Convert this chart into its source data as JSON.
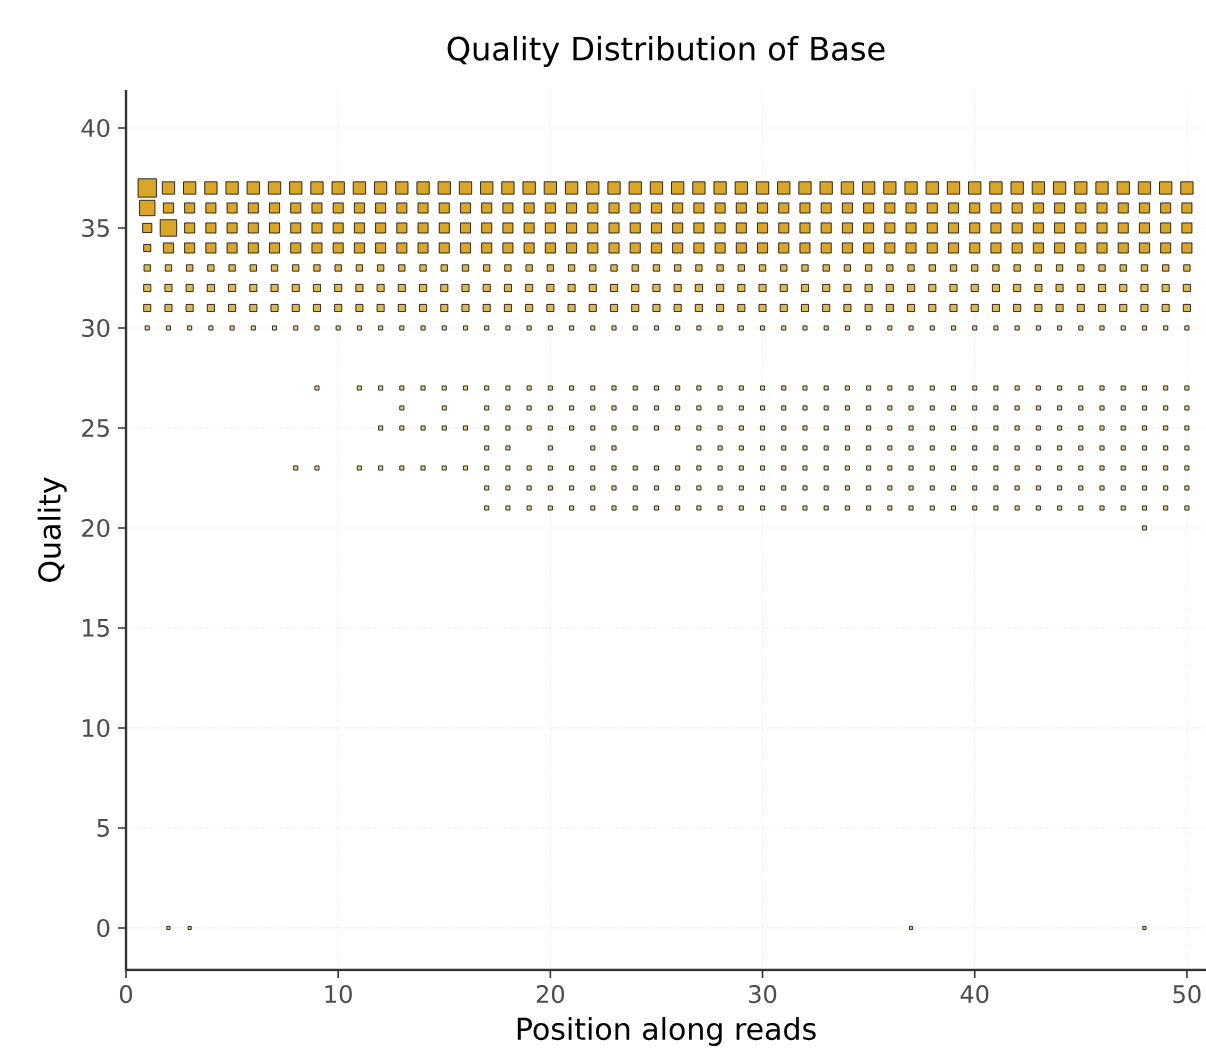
{
  "chart_data": {
    "type": "bubble",
    "title": "Quality Distribution of Base",
    "xlabel": "Position along reads",
    "ylabel": "Quality",
    "xlim": [
      0,
      50.9
    ],
    "ylim": [
      -2.1,
      41.9
    ],
    "xticks": [
      0,
      10,
      20,
      30,
      40,
      50
    ],
    "yticks": [
      0,
      5,
      10,
      15,
      20,
      25,
      30,
      35,
      40
    ],
    "grid": true,
    "marker": "square",
    "relative": false,
    "series": [
      {
        "color": "#d9a62a",
        "x": [
          1,
          2,
          3,
          4,
          5,
          6,
          7,
          8,
          9,
          10,
          11,
          12,
          13,
          14,
          15,
          16,
          17,
          18,
          19,
          20,
          21,
          22,
          23,
          24,
          25,
          26,
          27,
          28,
          29,
          30,
          31,
          32,
          33,
          34,
          35,
          36,
          37,
          38,
          39,
          40,
          41,
          42,
          43,
          44,
          45,
          46,
          47,
          48,
          49,
          50
        ],
        "values": [
          37,
          37,
          37,
          37,
          37,
          37,
          37,
          37,
          37,
          37,
          37,
          37,
          37,
          37,
          37,
          37,
          37,
          37,
          37,
          37,
          37,
          37,
          37,
          37,
          37,
          37,
          37,
          37,
          37,
          37,
          37,
          37,
          37,
          37,
          37,
          37,
          37,
          37,
          37,
          37,
          37,
          37,
          37,
          37,
          37,
          37,
          37,
          37,
          37,
          37
        ],
        "sizes": [
          1,
          0.45,
          0.45,
          0.45,
          0.45,
          0.45,
          0.45,
          0.45,
          0.45,
          0.45,
          0.45,
          0.45,
          0.45,
          0.45,
          0.45,
          0.45,
          0.45,
          0.45,
          0.45,
          0.45,
          0.45,
          0.45,
          0.45,
          0.45,
          0.45,
          0.45,
          0.45,
          0.45,
          0.45,
          0.45,
          0.45,
          0.45,
          0.45,
          0.45,
          0.45,
          0.45,
          0.45,
          0.45,
          0.45,
          0.45,
          0.45,
          0.45,
          0.45,
          0.45,
          0.45,
          0.45,
          0.45,
          0.45,
          0.45,
          0.45
        ]
      },
      {
        "color": "#d9a62a",
        "x": [
          1,
          2,
          3,
          4,
          5,
          6,
          7,
          8,
          9,
          10,
          11,
          12,
          13,
          14,
          15,
          16,
          17,
          18,
          19,
          20,
          21,
          22,
          23,
          24,
          25,
          26,
          27,
          28,
          29,
          30,
          31,
          32,
          33,
          34,
          35,
          36,
          37,
          38,
          39,
          40,
          41,
          42,
          43,
          44,
          45,
          46,
          47,
          48,
          49,
          50
        ],
        "values": [
          36,
          36,
          36,
          36,
          36,
          36,
          36,
          36,
          36,
          36,
          36,
          36,
          36,
          36,
          36,
          36,
          36,
          36,
          36,
          36,
          36,
          36,
          36,
          36,
          36,
          36,
          36,
          36,
          36,
          36,
          36,
          36,
          36,
          36,
          36,
          36,
          36,
          36,
          36,
          36,
          36,
          36,
          36,
          36,
          36,
          36,
          36,
          36,
          36,
          36
        ],
        "sizes": [
          0.7,
          0.3,
          0.3,
          0.3,
          0.3,
          0.3,
          0.3,
          0.3,
          0.3,
          0.3,
          0.3,
          0.3,
          0.3,
          0.3,
          0.3,
          0.3,
          0.3,
          0.3,
          0.3,
          0.3,
          0.3,
          0.3,
          0.3,
          0.3,
          0.3,
          0.3,
          0.3,
          0.3,
          0.3,
          0.3,
          0.3,
          0.3,
          0.3,
          0.3,
          0.3,
          0.3,
          0.3,
          0.3,
          0.3,
          0.3,
          0.3,
          0.3,
          0.3,
          0.3,
          0.3,
          0.3,
          0.3,
          0.3,
          0.3,
          0.3
        ]
      },
      {
        "color": "#d9a62a",
        "x": [
          1,
          2,
          3,
          4,
          5,
          6,
          7,
          8,
          9,
          10,
          11,
          12,
          13,
          14,
          15,
          16,
          17,
          18,
          19,
          20,
          21,
          22,
          23,
          24,
          25,
          26,
          27,
          28,
          29,
          30,
          31,
          32,
          33,
          34,
          35,
          36,
          37,
          38,
          39,
          40,
          41,
          42,
          43,
          44,
          45,
          46,
          47,
          48,
          49,
          50
        ],
        "values": [
          35,
          35,
          35,
          35,
          35,
          35,
          35,
          35,
          35,
          35,
          35,
          35,
          35,
          35,
          35,
          35,
          35,
          35,
          35,
          35,
          35,
          35,
          35,
          35,
          35,
          35,
          35,
          35,
          35,
          35,
          35,
          35,
          35,
          35,
          35,
          35,
          35,
          35,
          35,
          35,
          35,
          35,
          35,
          35,
          35,
          35,
          35,
          35,
          35,
          35
        ],
        "sizes": [
          0.25,
          0.8,
          0.3,
          0.3,
          0.3,
          0.3,
          0.3,
          0.3,
          0.3,
          0.3,
          0.3,
          0.3,
          0.3,
          0.3,
          0.3,
          0.3,
          0.3,
          0.3,
          0.3,
          0.3,
          0.3,
          0.3,
          0.3,
          0.3,
          0.3,
          0.3,
          0.3,
          0.3,
          0.3,
          0.3,
          0.3,
          0.3,
          0.3,
          0.3,
          0.3,
          0.3,
          0.3,
          0.3,
          0.3,
          0.3,
          0.3,
          0.3,
          0.3,
          0.3,
          0.3,
          0.3,
          0.3,
          0.3,
          0.3,
          0.3
        ]
      },
      {
        "color": "#d9a62a",
        "x": [
          1,
          2,
          3,
          4,
          5,
          6,
          7,
          8,
          9,
          10,
          11,
          12,
          13,
          14,
          15,
          16,
          17,
          18,
          19,
          20,
          21,
          22,
          23,
          24,
          25,
          26,
          27,
          28,
          29,
          30,
          31,
          32,
          33,
          34,
          35,
          36,
          37,
          38,
          39,
          40,
          41,
          42,
          43,
          44,
          45,
          46,
          47,
          48,
          49,
          50
        ],
        "values": [
          34,
          34,
          34,
          34,
          34,
          34,
          34,
          34,
          34,
          34,
          34,
          34,
          34,
          34,
          34,
          34,
          34,
          34,
          34,
          34,
          34,
          34,
          34,
          34,
          34,
          34,
          34,
          34,
          34,
          34,
          34,
          34,
          34,
          34,
          34,
          34,
          34,
          34,
          34,
          34,
          34,
          34,
          34,
          34,
          34,
          34,
          34,
          34,
          34,
          34
        ],
        "sizes": [
          0.15,
          0.3,
          0.3,
          0.3,
          0.3,
          0.3,
          0.3,
          0.3,
          0.3,
          0.3,
          0.3,
          0.3,
          0.3,
          0.3,
          0.3,
          0.3,
          0.3,
          0.3,
          0.3,
          0.3,
          0.3,
          0.3,
          0.3,
          0.3,
          0.3,
          0.3,
          0.3,
          0.3,
          0.3,
          0.3,
          0.3,
          0.3,
          0.3,
          0.3,
          0.3,
          0.3,
          0.3,
          0.3,
          0.3,
          0.3,
          0.3,
          0.3,
          0.3,
          0.3,
          0.3,
          0.3,
          0.3,
          0.3,
          0.3,
          0.3
        ]
      },
      {
        "color": "#e0b850",
        "x": [
          1,
          2,
          3,
          4,
          5,
          6,
          7,
          8,
          9,
          10,
          11,
          12,
          13,
          14,
          15,
          16,
          17,
          18,
          19,
          20,
          21,
          22,
          23,
          24,
          25,
          26,
          27,
          28,
          29,
          30,
          31,
          32,
          33,
          34,
          35,
          36,
          37,
          38,
          39,
          40,
          41,
          42,
          43,
          44,
          45,
          46,
          47,
          48,
          49,
          50
        ],
        "values": [
          33,
          33,
          33,
          33,
          33,
          33,
          33,
          33,
          33,
          33,
          33,
          33,
          33,
          33,
          33,
          33,
          33,
          33,
          33,
          33,
          33,
          33,
          33,
          33,
          33,
          33,
          33,
          33,
          33,
          33,
          33,
          33,
          33,
          33,
          33,
          33,
          33,
          33,
          33,
          33,
          33,
          33,
          33,
          33,
          33,
          33,
          33,
          33,
          33,
          33
        ],
        "sizes": [
          0.12,
          0.12,
          0.12,
          0.12,
          0.12,
          0.12,
          0.12,
          0.12,
          0.12,
          0.12,
          0.12,
          0.12,
          0.12,
          0.12,
          0.12,
          0.12,
          0.12,
          0.12,
          0.12,
          0.12,
          0.12,
          0.12,
          0.12,
          0.12,
          0.12,
          0.12,
          0.12,
          0.12,
          0.12,
          0.12,
          0.12,
          0.12,
          0.12,
          0.12,
          0.12,
          0.12,
          0.12,
          0.12,
          0.12,
          0.12,
          0.12,
          0.12,
          0.12,
          0.12,
          0.12,
          0.12,
          0.12,
          0.12,
          0.12,
          0.12
        ]
      },
      {
        "color": "#e0b850",
        "x": [
          1,
          2,
          3,
          4,
          5,
          6,
          7,
          8,
          9,
          10,
          11,
          12,
          13,
          14,
          15,
          16,
          17,
          18,
          19,
          20,
          21,
          22,
          23,
          24,
          25,
          26,
          27,
          28,
          29,
          30,
          31,
          32,
          33,
          34,
          35,
          36,
          37,
          38,
          39,
          40,
          41,
          42,
          43,
          44,
          45,
          46,
          47,
          48,
          49,
          50
        ],
        "values": [
          32,
          32,
          32,
          32,
          32,
          32,
          32,
          32,
          32,
          32,
          32,
          32,
          32,
          32,
          32,
          32,
          32,
          32,
          32,
          32,
          32,
          32,
          32,
          32,
          32,
          32,
          32,
          32,
          32,
          32,
          32,
          32,
          32,
          32,
          32,
          32,
          32,
          32,
          32,
          32,
          32,
          32,
          32,
          32,
          32,
          32,
          32,
          32,
          32,
          32
        ],
        "sizes": [
          0.15,
          0.15,
          0.15,
          0.15,
          0.15,
          0.15,
          0.15,
          0.15,
          0.15,
          0.15,
          0.15,
          0.15,
          0.15,
          0.15,
          0.15,
          0.15,
          0.15,
          0.15,
          0.15,
          0.15,
          0.15,
          0.15,
          0.15,
          0.15,
          0.15,
          0.15,
          0.15,
          0.15,
          0.15,
          0.15,
          0.15,
          0.15,
          0.15,
          0.15,
          0.15,
          0.15,
          0.15,
          0.15,
          0.15,
          0.15,
          0.15,
          0.15,
          0.15,
          0.15,
          0.15,
          0.15,
          0.15,
          0.15,
          0.15,
          0.15
        ]
      },
      {
        "color": "#e0b850",
        "x": [
          1,
          2,
          3,
          4,
          5,
          6,
          7,
          8,
          9,
          10,
          11,
          12,
          13,
          14,
          15,
          16,
          17,
          18,
          19,
          20,
          21,
          22,
          23,
          24,
          25,
          26,
          27,
          28,
          29,
          30,
          31,
          32,
          33,
          34,
          35,
          36,
          37,
          38,
          39,
          40,
          41,
          42,
          43,
          44,
          45,
          46,
          47,
          48,
          49,
          50
        ],
        "values": [
          31,
          31,
          31,
          31,
          31,
          31,
          31,
          31,
          31,
          31,
          31,
          31,
          31,
          31,
          31,
          31,
          31,
          31,
          31,
          31,
          31,
          31,
          31,
          31,
          31,
          31,
          31,
          31,
          31,
          31,
          31,
          31,
          31,
          31,
          31,
          31,
          31,
          31,
          31,
          31,
          31,
          31,
          31,
          31,
          31,
          31,
          31,
          31,
          31,
          31
        ],
        "sizes": [
          0.15,
          0.15,
          0.15,
          0.15,
          0.15,
          0.15,
          0.15,
          0.15,
          0.15,
          0.15,
          0.15,
          0.15,
          0.15,
          0.15,
          0.15,
          0.15,
          0.15,
          0.15,
          0.15,
          0.15,
          0.15,
          0.15,
          0.15,
          0.15,
          0.15,
          0.15,
          0.15,
          0.15,
          0.15,
          0.15,
          0.15,
          0.15,
          0.15,
          0.15,
          0.15,
          0.15,
          0.15,
          0.15,
          0.15,
          0.15,
          0.15,
          0.15,
          0.15,
          0.15,
          0.15,
          0.15,
          0.15,
          0.15,
          0.15,
          0.15
        ]
      },
      {
        "color": "#ead08a",
        "x": [
          1,
          2,
          3,
          4,
          5,
          6,
          7,
          8,
          9,
          10,
          11,
          12,
          13,
          14,
          15,
          16,
          17,
          18,
          19,
          20,
          21,
          22,
          23,
          24,
          25,
          26,
          27,
          28,
          29,
          30,
          31,
          32,
          33,
          34,
          35,
          36,
          37,
          38,
          39,
          40,
          41,
          42,
          43,
          44,
          45,
          46,
          47,
          48,
          49,
          50
        ],
        "values": [
          30,
          30,
          30,
          30,
          30,
          30,
          30,
          30,
          30,
          30,
          30,
          30,
          30,
          30,
          30,
          30,
          30,
          30,
          30,
          30,
          30,
          30,
          30,
          30,
          30,
          30,
          30,
          30,
          30,
          30,
          30,
          30,
          30,
          30,
          30,
          30,
          30,
          30,
          30,
          30,
          30,
          30,
          30,
          30,
          30,
          30,
          30,
          30,
          30,
          30
        ],
        "sizes": [
          0.05,
          0.05,
          0.05,
          0.05,
          0.05,
          0.05,
          0.05,
          0.05,
          0.05,
          0.05,
          0.05,
          0.05,
          0.05,
          0.05,
          0.05,
          0.05,
          0.05,
          0.05,
          0.05,
          0.05,
          0.05,
          0.05,
          0.05,
          0.05,
          0.05,
          0.05,
          0.05,
          0.05,
          0.05,
          0.05,
          0.05,
          0.05,
          0.05,
          0.05,
          0.05,
          0.05,
          0.05,
          0.05,
          0.05,
          0.05,
          0.05,
          0.05,
          0.05,
          0.05,
          0.05,
          0.05,
          0.05,
          0.05,
          0.05,
          0.05
        ]
      },
      {
        "color": "#ead08a",
        "x": [
          9,
          11,
          12,
          13,
          14,
          15,
          16,
          17,
          18,
          19,
          20,
          21,
          22,
          23,
          24,
          25,
          26,
          27,
          28,
          29,
          30,
          31,
          32,
          33,
          34,
          35,
          36,
          37,
          38,
          39,
          40,
          41,
          42,
          43,
          44,
          45,
          46,
          47,
          48,
          49,
          50
        ],
        "values": [
          27,
          27,
          27,
          27,
          27,
          27,
          27,
          27,
          27,
          27,
          27,
          27,
          27,
          27,
          27,
          27,
          27,
          27,
          27,
          27,
          27,
          27,
          27,
          27,
          27,
          27,
          27,
          27,
          27,
          27,
          27,
          27,
          27,
          27,
          27,
          27,
          27,
          27,
          27,
          27,
          27
        ],
        "sizes": [
          0.05,
          0.05,
          0.05,
          0.05,
          0.05,
          0.05,
          0.05,
          0.05,
          0.05,
          0.05,
          0.05,
          0.05,
          0.05,
          0.05,
          0.05,
          0.05,
          0.05,
          0.05,
          0.05,
          0.05,
          0.05,
          0.05,
          0.05,
          0.05,
          0.05,
          0.05,
          0.05,
          0.05,
          0.05,
          0.05,
          0.05,
          0.05,
          0.05,
          0.05,
          0.05,
          0.05,
          0.05,
          0.05,
          0.05,
          0.05,
          0.05
        ]
      },
      {
        "color": "#ead08a",
        "x": [
          13,
          15,
          17,
          18,
          19,
          20,
          21,
          22,
          23,
          24,
          25,
          26,
          27,
          28,
          29,
          30,
          31,
          32,
          33,
          34,
          35,
          36,
          37,
          38,
          39,
          40,
          41,
          42,
          43,
          44,
          45,
          46,
          47,
          48,
          49,
          50
        ],
        "values": [
          26,
          26,
          26,
          26,
          26,
          26,
          26,
          26,
          26,
          26,
          26,
          26,
          26,
          26,
          26,
          26,
          26,
          26,
          26,
          26,
          26,
          26,
          26,
          26,
          26,
          26,
          26,
          26,
          26,
          26,
          26,
          26,
          26,
          26,
          26,
          26
        ],
        "sizes": [
          0.05,
          0.05,
          0.05,
          0.05,
          0.05,
          0.05,
          0.05,
          0.05,
          0.05,
          0.05,
          0.05,
          0.05,
          0.05,
          0.05,
          0.05,
          0.05,
          0.05,
          0.05,
          0.05,
          0.05,
          0.05,
          0.05,
          0.05,
          0.05,
          0.05,
          0.05,
          0.05,
          0.05,
          0.05,
          0.05,
          0.05,
          0.05,
          0.05,
          0.05,
          0.05,
          0.05
        ]
      },
      {
        "color": "#ead08a",
        "x": [
          12,
          13,
          14,
          15,
          16,
          17,
          18,
          19,
          20,
          21,
          22,
          23,
          24,
          25,
          26,
          27,
          28,
          29,
          30,
          31,
          32,
          33,
          34,
          35,
          36,
          37,
          38,
          39,
          40,
          41,
          42,
          43,
          44,
          45,
          46,
          47,
          48,
          49,
          50
        ],
        "values": [
          25,
          25,
          25,
          25,
          25,
          25,
          25,
          25,
          25,
          25,
          25,
          25,
          25,
          25,
          25,
          25,
          25,
          25,
          25,
          25,
          25,
          25,
          25,
          25,
          25,
          25,
          25,
          25,
          25,
          25,
          25,
          25,
          25,
          25,
          25,
          25,
          25,
          25,
          25
        ],
        "sizes": [
          0.05,
          0.05,
          0.05,
          0.05,
          0.05,
          0.05,
          0.05,
          0.05,
          0.05,
          0.05,
          0.05,
          0.05,
          0.05,
          0.05,
          0.05,
          0.05,
          0.05,
          0.05,
          0.05,
          0.05,
          0.05,
          0.05,
          0.05,
          0.05,
          0.05,
          0.05,
          0.05,
          0.05,
          0.05,
          0.05,
          0.05,
          0.05,
          0.05,
          0.05,
          0.05,
          0.05,
          0.05,
          0.05,
          0.05
        ]
      },
      {
        "color": "#ead08a",
        "x": [
          17,
          18,
          20,
          22,
          23,
          27,
          28,
          29,
          30,
          31,
          32,
          33,
          34,
          35,
          36,
          37,
          38,
          39,
          40,
          41,
          42,
          43,
          44,
          45,
          46,
          47,
          48,
          49,
          50
        ],
        "values": [
          24,
          24,
          24,
          24,
          24,
          24,
          24,
          24,
          24,
          24,
          24,
          24,
          24,
          24,
          24,
          24,
          24,
          24,
          24,
          24,
          24,
          24,
          24,
          24,
          24,
          24,
          24,
          24,
          24
        ],
        "sizes": [
          0.05,
          0.05,
          0.05,
          0.05,
          0.05,
          0.05,
          0.05,
          0.05,
          0.05,
          0.05,
          0.05,
          0.05,
          0.05,
          0.05,
          0.05,
          0.05,
          0.05,
          0.05,
          0.05,
          0.05,
          0.05,
          0.05,
          0.05,
          0.05,
          0.05,
          0.05,
          0.05,
          0.05,
          0.05
        ]
      },
      {
        "color": "#ead08a",
        "x": [
          8,
          9,
          11,
          12,
          13,
          14,
          15,
          16,
          17,
          18,
          19,
          20,
          21,
          22,
          23,
          24,
          25,
          26,
          27,
          28,
          29,
          30,
          31,
          32,
          33,
          34,
          35,
          36,
          37,
          38,
          39,
          40,
          41,
          42,
          43,
          44,
          45,
          46,
          47,
          48,
          49,
          50
        ],
        "values": [
          23,
          23,
          23,
          23,
          23,
          23,
          23,
          23,
          23,
          23,
          23,
          23,
          23,
          23,
          23,
          23,
          23,
          23,
          23,
          23,
          23,
          23,
          23,
          23,
          23,
          23,
          23,
          23,
          23,
          23,
          23,
          23,
          23,
          23,
          23,
          23,
          23,
          23,
          23,
          23,
          23,
          23
        ],
        "sizes": [
          0.05,
          0.05,
          0.05,
          0.05,
          0.05,
          0.05,
          0.05,
          0.05,
          0.05,
          0.05,
          0.05,
          0.05,
          0.05,
          0.05,
          0.05,
          0.05,
          0.05,
          0.05,
          0.05,
          0.05,
          0.05,
          0.05,
          0.05,
          0.05,
          0.05,
          0.05,
          0.05,
          0.05,
          0.05,
          0.05,
          0.05,
          0.05,
          0.05,
          0.05,
          0.05,
          0.05,
          0.05,
          0.05,
          0.05,
          0.05,
          0.05,
          0.05
        ]
      },
      {
        "color": "#ead08a",
        "x": [
          17,
          18,
          19,
          20,
          21,
          22,
          23,
          24,
          25,
          26,
          27,
          28,
          29,
          30,
          31,
          32,
          33,
          34,
          35,
          36,
          37,
          38,
          39,
          40,
          41,
          42,
          43,
          44,
          45,
          46,
          47,
          48,
          49,
          50
        ],
        "values": [
          22,
          22,
          22,
          22,
          22,
          22,
          22,
          22,
          22,
          22,
          22,
          22,
          22,
          22,
          22,
          22,
          22,
          22,
          22,
          22,
          22,
          22,
          22,
          22,
          22,
          22,
          22,
          22,
          22,
          22,
          22,
          22,
          22,
          22
        ],
        "sizes": [
          0.05,
          0.05,
          0.05,
          0.05,
          0.05,
          0.05,
          0.05,
          0.05,
          0.05,
          0.05,
          0.05,
          0.05,
          0.05,
          0.05,
          0.05,
          0.05,
          0.05,
          0.05,
          0.05,
          0.05,
          0.05,
          0.05,
          0.05,
          0.05,
          0.05,
          0.05,
          0.05,
          0.05,
          0.05,
          0.05,
          0.05,
          0.05,
          0.05,
          0.05
        ]
      },
      {
        "color": "#ead08a",
        "x": [
          17,
          18,
          19,
          20,
          21,
          22,
          23,
          24,
          25,
          26,
          27,
          28,
          29,
          30,
          31,
          32,
          33,
          34,
          35,
          36,
          37,
          38,
          39,
          40,
          41,
          42,
          43,
          44,
          45,
          46,
          47,
          48,
          49,
          50
        ],
        "values": [
          21,
          21,
          21,
          21,
          21,
          21,
          21,
          21,
          21,
          21,
          21,
          21,
          21,
          21,
          21,
          21,
          21,
          21,
          21,
          21,
          21,
          21,
          21,
          21,
          21,
          21,
          21,
          21,
          21,
          21,
          21,
          21,
          21,
          21
        ],
        "sizes": [
          0.05,
          0.05,
          0.05,
          0.05,
          0.05,
          0.05,
          0.05,
          0.05,
          0.05,
          0.05,
          0.05,
          0.05,
          0.05,
          0.05,
          0.05,
          0.05,
          0.05,
          0.05,
          0.05,
          0.05,
          0.05,
          0.05,
          0.05,
          0.05,
          0.05,
          0.05,
          0.05,
          0.05,
          0.05,
          0.05,
          0.05,
          0.05,
          0.05,
          0.05
        ]
      },
      {
        "color": "#ead08a",
        "x": [
          48
        ],
        "values": [
          20
        ],
        "sizes": [
          0.05
        ]
      },
      {
        "color": "#d0d070",
        "x": [
          2,
          3,
          37,
          48
        ],
        "values": [
          0,
          0,
          0,
          0
        ],
        "sizes": [
          0.03,
          0.03,
          0.03,
          0.03
        ]
      }
    ]
  }
}
